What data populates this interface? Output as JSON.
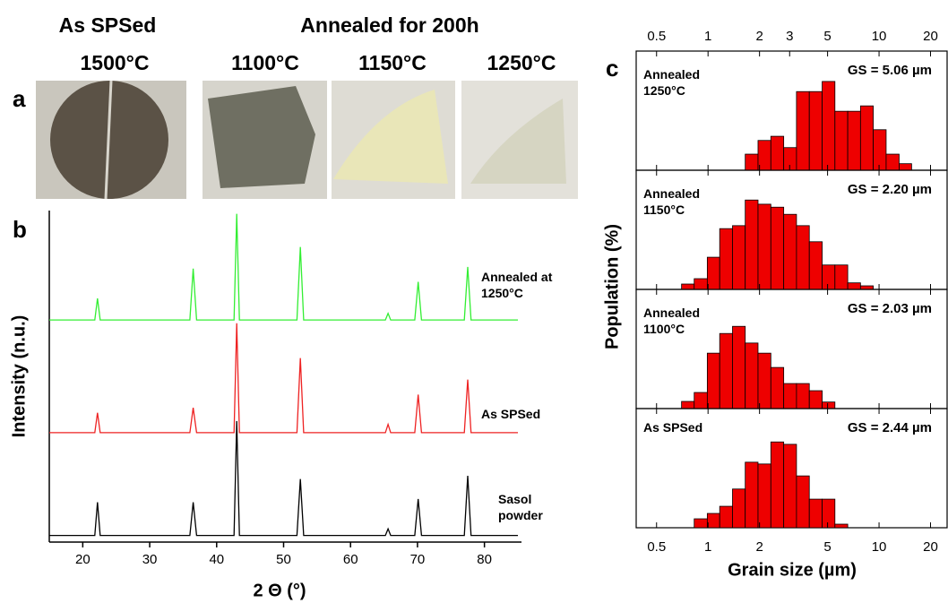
{
  "panel_a": {
    "label": "a",
    "groups": [
      {
        "title": "As SPSed",
        "samples": [
          "1500°C"
        ]
      },
      {
        "title": "Annealed for 200h",
        "samples": [
          "1100°C",
          "1150°C",
          "1250°C"
        ]
      }
    ]
  },
  "panel_b": {
    "label": "b"
  },
  "panel_c": {
    "label": "c",
    "ylabel": "Population (%)",
    "xlabel": "Grain size (µm)"
  },
  "chart_data": [
    {
      "type": "line",
      "xlabel": "2 Θ (°)",
      "ylabel": "Intensity (n.u.)",
      "xlim": [
        15,
        85
      ],
      "ylim": [
        0,
        1
      ],
      "xticks": [
        20,
        30,
        40,
        50,
        60,
        70,
        80
      ],
      "x": [
        15,
        21.8,
        22.2,
        22.6,
        36.0,
        36.5,
        37.0,
        42.6,
        43.0,
        43.4,
        52.0,
        52.5,
        53.0,
        65.2,
        65.6,
        66.0,
        69.6,
        70.1,
        70.6,
        77.0,
        77.5,
        78.0,
        85
      ],
      "series": [
        {
          "name": "Annealed at 1250°C",
          "color": "#33ee33",
          "values": [
            0.67,
            0.67,
            0.735,
            0.67,
            0.67,
            0.825,
            0.67,
            0.67,
            0.99,
            0.67,
            0.67,
            0.89,
            0.67,
            0.67,
            0.69,
            0.67,
            0.67,
            0.785,
            0.67,
            0.67,
            0.83,
            0.67,
            0.67
          ]
        },
        {
          "name": "As SPSed",
          "color": "#ee2222",
          "values": [
            0.33,
            0.33,
            0.39,
            0.33,
            0.33,
            0.405,
            0.33,
            0.33,
            0.66,
            0.33,
            0.33,
            0.555,
            0.33,
            0.33,
            0.355,
            0.33,
            0.33,
            0.445,
            0.33,
            0.33,
            0.49,
            0.33,
            0.33
          ]
        },
        {
          "name": "Sasol powder",
          "color": "#000000",
          "values": [
            0.02,
            0.02,
            0.12,
            0.02,
            0.02,
            0.12,
            0.02,
            0.02,
            0.365,
            0.02,
            0.02,
            0.19,
            0.02,
            0.02,
            0.04,
            0.02,
            0.02,
            0.13,
            0.02,
            0.02,
            0.2,
            0.02,
            0.02
          ]
        }
      ]
    },
    {
      "type": "histogram",
      "title": "Annealed 1250°C",
      "annotation": "GS = 5.06 µm",
      "color": "#ee0000",
      "log_x": true,
      "xlim": [
        0.38,
        25
      ],
      "ylim": [
        0,
        20
      ],
      "xticks": [
        0.5,
        1,
        2,
        3,
        5,
        10,
        20
      ],
      "tick_labels": "top",
      "bins": [
        1.65,
        1.96,
        2.33,
        2.77,
        3.29,
        3.91,
        4.65,
        5.52,
        6.56,
        7.79,
        9.25,
        11.0,
        13.1,
        15.5
      ],
      "values": [
        2.7,
        5.0,
        5.7,
        3.8,
        13.2,
        13.2,
        14.9,
        9.9,
        9.9,
        10.8,
        6.8,
        2.7,
        1.1
      ]
    },
    {
      "type": "histogram",
      "title": "Annealed 1150°C",
      "annotation": "GS = 2.20 µm",
      "color": "#ee0000",
      "log_x": true,
      "xlim": [
        0.38,
        25
      ],
      "ylim": [
        0,
        20
      ],
      "xticks": [
        0.5,
        1,
        2,
        5,
        10,
        20
      ],
      "tick_labels": "none",
      "bins": [
        0.7,
        0.83,
        0.99,
        1.17,
        1.39,
        1.65,
        1.96,
        2.33,
        2.77,
        3.29,
        3.91,
        4.65,
        5.52,
        6.56,
        7.79,
        9.25
      ],
      "values": [
        0.9,
        1.8,
        5.4,
        10.2,
        10.7,
        15.0,
        14.3,
        13.8,
        12.6,
        10.7,
        8.0,
        4.1,
        4.1,
        1.1,
        0.6
      ]
    },
    {
      "type": "histogram",
      "title": "Annealed 1100°C",
      "annotation": "GS = 2.03  µm",
      "color": "#ee0000",
      "log_x": true,
      "xlim": [
        0.38,
        25
      ],
      "ylim": [
        0,
        20
      ],
      "xticks": [
        0.5,
        1,
        2,
        5,
        10,
        20
      ],
      "tick_labels": "none",
      "bins": [
        0.7,
        0.83,
        0.99,
        1.17,
        1.39,
        1.65,
        1.96,
        2.33,
        2.77,
        3.29,
        3.91,
        4.65,
        5.52
      ],
      "values": [
        1.2,
        2.7,
        9.3,
        12.6,
        13.8,
        11.0,
        9.3,
        6.9,
        4.2,
        4.2,
        3.0,
        1.1
      ]
    },
    {
      "type": "histogram",
      "title": "As SPSed",
      "annotation": "GS = 2.44 µm",
      "color": "#ee0000",
      "log_x": true,
      "xlim": [
        0.38,
        25
      ],
      "ylim": [
        0,
        20
      ],
      "xticks": [
        0.5,
        1,
        2,
        5,
        10,
        20
      ],
      "tick_labels": "bottom",
      "bins": [
        0.83,
        0.99,
        1.17,
        1.39,
        1.65,
        1.96,
        2.33,
        2.77,
        3.29,
        3.91,
        4.65,
        5.52,
        6.56
      ],
      "values": [
        1.5,
        2.4,
        3.6,
        6.5,
        11.0,
        10.7,
        14.4,
        14.0,
        8.7,
        4.8,
        4.8,
        0.6
      ]
    }
  ]
}
